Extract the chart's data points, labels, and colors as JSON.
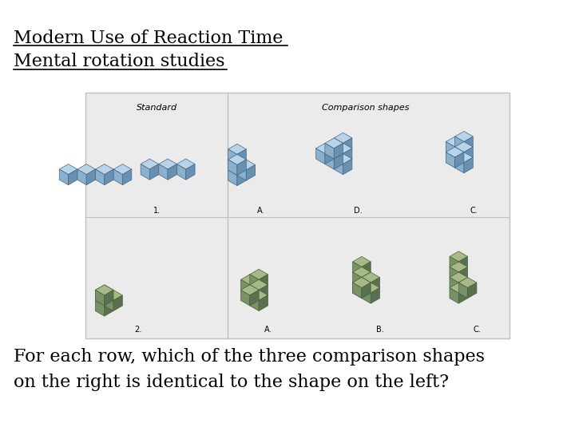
{
  "title_line1": "Modern Use of Reaction Time",
  "title_line2": "Mental rotation studies",
  "body_text_line1": "For each row, which of the three comparison shapes",
  "body_text_line2": "on the right is identical to the shape on the left?",
  "bg_color": "#ffffff",
  "box_bg_color": "#ebebeb",
  "title_fontsize": 16,
  "body_fontsize": 16,
  "standard_label": "Standard",
  "comparison_label": "Comparison shapes",
  "row1_labels": [
    "1.",
    "A.",
    "D.",
    "C."
  ],
  "row2_labels": [
    "2.",
    "A.",
    "B.",
    "C."
  ],
  "blue_top": "#b8d4e8",
  "blue_left": "#8ab0cc",
  "blue_right": "#6890b0",
  "green_top": "#a8b888",
  "green_left": "#7a9068",
  "green_right": "#5a7050"
}
